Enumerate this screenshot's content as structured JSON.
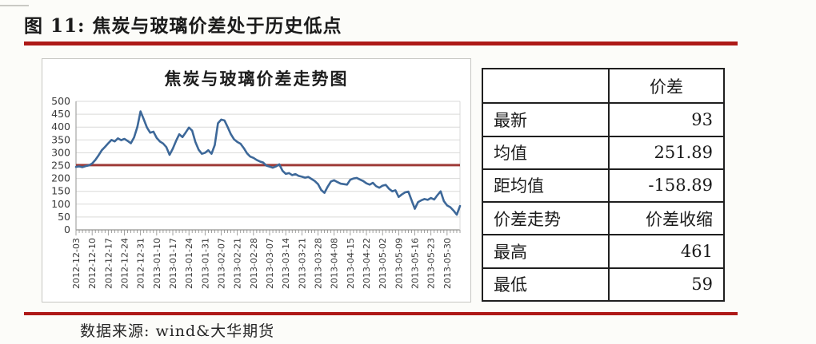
{
  "page": {
    "figure_label": "图 11: 焦炭与玻璃价差处于历史低点",
    "source": "数据来源: wind&大华期货",
    "accent_color": "#ae1917"
  },
  "chart_data": {
    "type": "line",
    "title": "焦炭与玻璃价差走势图",
    "xlabel": "",
    "ylabel": "",
    "ylim": [
      0,
      500
    ],
    "y_ticks": [
      0,
      50,
      100,
      150,
      200,
      250,
      300,
      350,
      400,
      450,
      500
    ],
    "grid": true,
    "legend": "none",
    "points_per_label": 5,
    "x_labels": [
      "2012-12-03",
      "2012-12-10",
      "2012-12-17",
      "2012-12-24",
      "2012-12-31",
      "2013-01-10",
      "2013-01-17",
      "2013-01-24",
      "2013-01-31",
      "2013-02-07",
      "2013-02-21",
      "2013-02-28",
      "2013-03-07",
      "2013-03-14",
      "2013-03-21",
      "2013-03-28",
      "2013-04-08",
      "2013-04-15",
      "2013-04-22",
      "2013-05-02",
      "2013-05-09",
      "2013-05-16",
      "2013-05-23",
      "2013-05-30"
    ],
    "series": [
      {
        "name": "价差",
        "color": "#3d6899",
        "values": [
          245,
          247,
          244,
          248,
          251,
          258,
          272,
          290,
          310,
          323,
          337,
          350,
          344,
          356,
          349,
          354,
          346,
          337,
          360,
          400,
          461,
          430,
          398,
          378,
          382,
          358,
          344,
          336,
          322,
          292,
          316,
          346,
          372,
          361,
          379,
          398,
          386,
          342,
          312,
          296,
          300,
          310,
          296,
          330,
          415,
          429,
          426,
          400,
          372,
          352,
          342,
          335,
          318,
          298,
          285,
          280,
          272,
          266,
          262,
          250,
          246,
          242,
          247,
          255,
          230,
          218,
          221,
          213,
          217,
          210,
          207,
          203,
          206,
          198,
          190,
          178,
          155,
          144,
          168,
          188,
          193,
          186,
          180,
          178,
          176,
          195,
          200,
          202,
          196,
          190,
          181,
          176,
          183,
          170,
          164,
          172,
          175,
          160,
          150,
          154,
          128,
          138,
          146,
          149,
          115,
          82,
          108,
          115,
          120,
          117,
          124,
          118,
          135,
          150,
          112,
          95,
          88,
          75,
          59,
          93
        ]
      }
    ],
    "mean_line": {
      "value": 251.89,
      "color": "#9e3b38"
    },
    "grid_color": "#d9d9d8",
    "axis_color": "#a5a5a3"
  },
  "table": {
    "header": [
      "",
      "价差"
    ],
    "rows": [
      [
        "最新",
        "93"
      ],
      [
        "均值",
        "251.89"
      ],
      [
        "距均值",
        "-158.89"
      ],
      [
        "价差走势",
        "价差收缩"
      ],
      [
        "最高",
        "461"
      ],
      [
        "最低",
        "59"
      ]
    ]
  }
}
